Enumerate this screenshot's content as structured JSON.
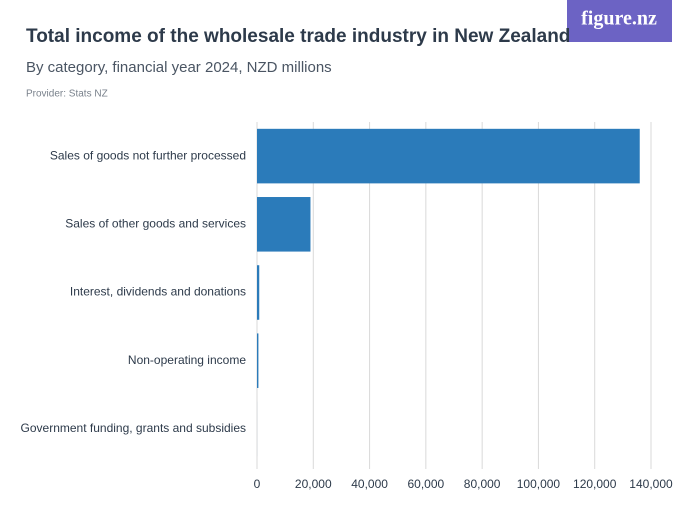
{
  "logo": "figure.nz",
  "chart_data": {
    "type": "bar",
    "title": "Total income of the wholesale trade industry in New Zealand",
    "subtitle": "By category, financial year 2024, NZD millions",
    "provider": "Provider: Stats NZ",
    "categories": [
      "Sales of goods not further processed",
      "Sales of other goods and services",
      "Interest, dividends and donations",
      "Non-operating income",
      "Government funding, grants and subsidies"
    ],
    "values": [
      136000,
      19000,
      800,
      500,
      10
    ],
    "color": "#2b7bba",
    "xlim": [
      0,
      140000
    ],
    "xticks": [
      0,
      {
        "value": 20000,
        "label": "20,000"
      },
      {
        "value": 40000,
        "label": "40,000"
      },
      {
        "value": 60000,
        "label": "60,000"
      },
      {
        "value": 80000,
        "label": "80,000"
      },
      {
        "value": 100000,
        "label": "100,000"
      },
      {
        "value": 120000,
        "label": "120,000"
      },
      {
        "value": 140000,
        "label": "140,000"
      }
    ],
    "grid": true
  }
}
